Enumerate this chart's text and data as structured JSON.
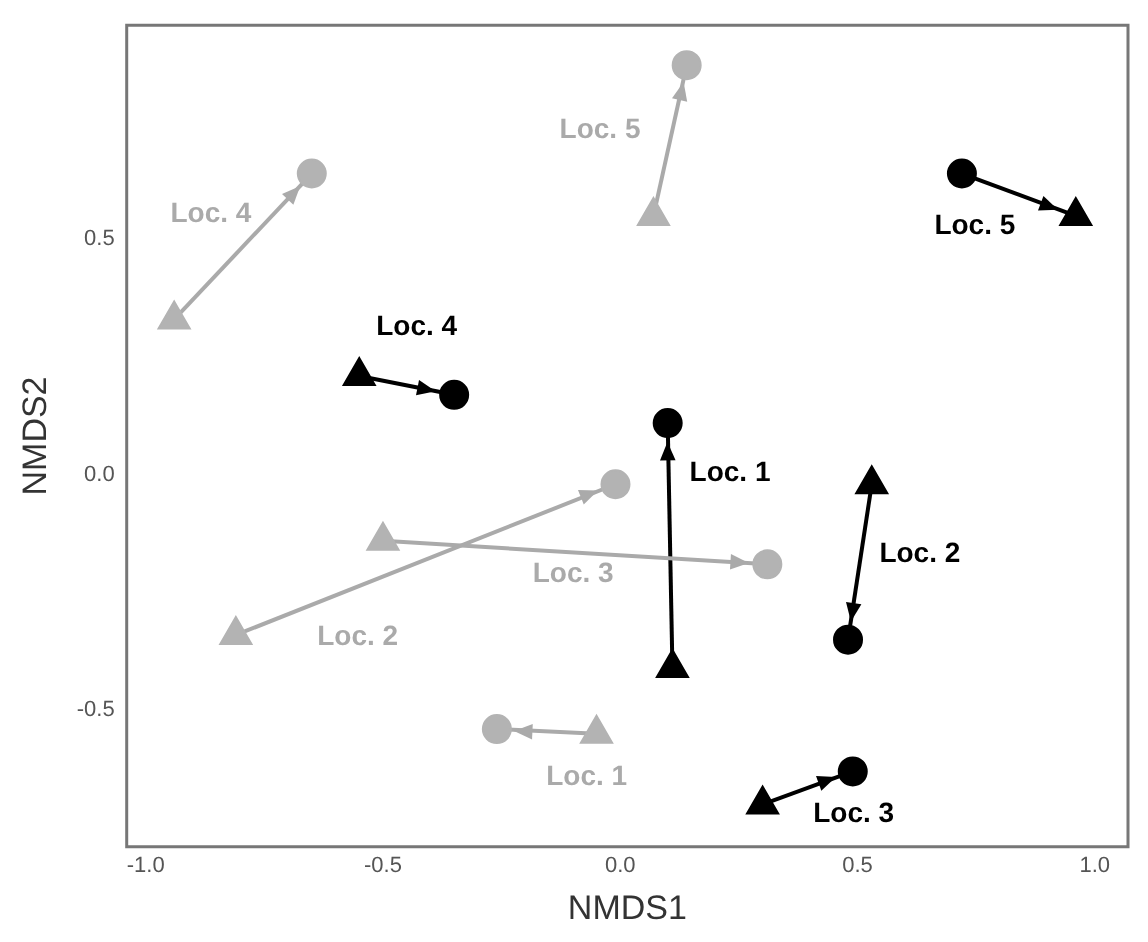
{
  "chart_data": {
    "type": "scatter",
    "xlabel": "NMDS1",
    "ylabel": "NMDS2",
    "grid": false,
    "legend": false,
    "xlim": [
      -1.04,
      1.07
    ],
    "ylim": [
      -0.79,
      0.955
    ],
    "xticks": [
      {
        "value": -1,
        "label": "-1.0"
      },
      {
        "value": -0.5,
        "label": "-0.5"
      },
      {
        "value": 0,
        "label": "0.0"
      },
      {
        "value": 0.5,
        "label": "0.5"
      },
      {
        "value": 1,
        "label": "1.0"
      }
    ],
    "yticks": [
      {
        "value": -0.5,
        "label": "-0.5"
      },
      {
        "value": 0,
        "label": "0.0"
      },
      {
        "value": 0.5,
        "label": "0.5"
      }
    ],
    "series": [
      {
        "type": "line",
        "color": "#aaaaaa",
        "marker": "none",
        "x": [
          -0.94,
          -0.65
        ],
        "values": [
          0.33,
          0.64
        ]
      },
      {
        "type": "line",
        "color": "#aaaaaa",
        "marker": "none",
        "x": [
          0.07,
          0.14
        ],
        "values": [
          0.55,
          0.87
        ]
      },
      {
        "type": "line",
        "color": "#aaaaaa",
        "marker": "none",
        "x": [
          -0.81,
          -0.01
        ],
        "values": [
          -0.34,
          -0.02
        ]
      },
      {
        "type": "line",
        "color": "#aaaaaa",
        "marker": "none",
        "x": [
          -0.5,
          0.31
        ],
        "values": [
          -0.14,
          -0.19
        ]
      },
      {
        "type": "line",
        "color": "#aaaaaa",
        "marker": "none",
        "x": [
          -0.05,
          -0.26
        ],
        "values": [
          -0.55,
          -0.54
        ]
      },
      {
        "type": "line",
        "color": "#000000",
        "marker": "none",
        "x": [
          -0.55,
          -0.35
        ],
        "values": [
          0.21,
          0.17
        ]
      },
      {
        "type": "line",
        "color": "#000000",
        "marker": "none",
        "x": [
          0.72,
          0.96
        ],
        "values": [
          0.64,
          0.55
        ]
      },
      {
        "type": "line",
        "color": "#000000",
        "marker": "none",
        "x": [
          0.11,
          0.1
        ],
        "values": [
          -0.41,
          0.11
        ]
      },
      {
        "type": "line",
        "color": "#000000",
        "marker": "none",
        "x": [
          0.53,
          0.48
        ],
        "values": [
          -0.02,
          -0.35
        ]
      },
      {
        "type": "line",
        "color": "#000000",
        "marker": "none",
        "x": [
          0.3,
          0.49
        ],
        "values": [
          -0.7,
          -0.63
        ]
      },
      {
        "color": "#b3b3b3",
        "marker": "triangle",
        "x": [
          -0.94,
          0.07,
          -0.81,
          -0.5,
          -0.05
        ],
        "values": [
          0.33,
          0.55,
          -0.34,
          -0.14,
          -0.55
        ]
      },
      {
        "color": "#b3b3b3",
        "marker": "circle",
        "x": [
          -0.65,
          0.14,
          -0.01,
          0.31,
          -0.26
        ],
        "values": [
          0.64,
          0.87,
          -0.02,
          -0.19,
          -0.54
        ]
      },
      {
        "color": "#000000",
        "marker": "triangle",
        "x": [
          -0.55,
          0.96,
          0.11,
          0.53,
          0.3
        ],
        "values": [
          0.21,
          0.55,
          -0.41,
          -0.02,
          -0.7
        ]
      },
      {
        "color": "#000000",
        "marker": "circle",
        "x": [
          -0.35,
          0.72,
          0.1,
          0.48,
          0.49
        ],
        "values": [
          0.17,
          0.64,
          0.11,
          -0.35,
          -0.63
        ]
      }
    ],
    "annotations": [
      "Loc. 4",
      "Loc. 5",
      "Loc. 2",
      "Loc. 3",
      "Loc. 1",
      "Loc. 4",
      "Loc. 5",
      "Loc. 1",
      "Loc. 2",
      "Loc. 3"
    ]
  }
}
